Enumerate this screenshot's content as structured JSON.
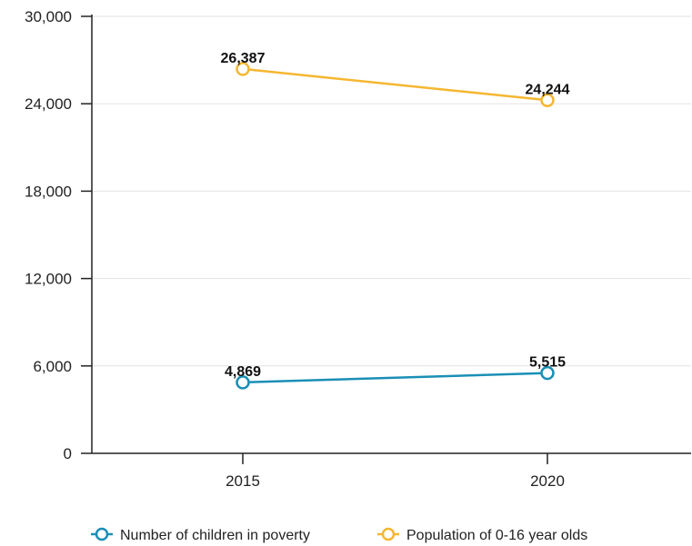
{
  "chart_data": {
    "type": "line",
    "categories": [
      "2015",
      "2020"
    ],
    "series": [
      {
        "name": "Number of children in poverty",
        "values": [
          4869,
          5515
        ],
        "labels": [
          "4,869",
          "5,515"
        ],
        "color": "#1a8fb5"
      },
      {
        "name": "Population of 0-16 year olds",
        "values": [
          26387,
          24244
        ],
        "labels": [
          "26,387",
          "24,244"
        ],
        "color": "#f5b731"
      }
    ],
    "y_ticks": [
      0,
      6000,
      12000,
      18000,
      24000,
      30000
    ],
    "y_tick_labels": [
      "0",
      "6,000",
      "12,000",
      "18,000",
      "24,000",
      "30,000"
    ],
    "ylim": [
      0,
      30000
    ],
    "grid": true,
    "legend_position": "bottom"
  }
}
